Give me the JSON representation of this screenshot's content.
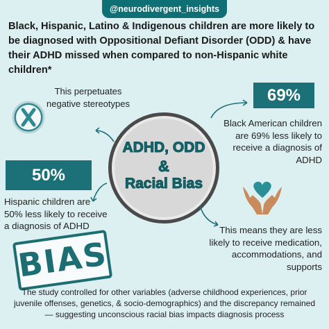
{
  "handle": "@neurodivergent_insights",
  "headline": "Black, Hispanic, Latino & Indigenous children are more likely to be diagnosed with Oppositional Defiant Disorder (ODD) & have their ADHD missed when compared to non-Hispanic white children*",
  "stereotypes": {
    "icon": "x-circle-icon",
    "text": "This perpetuates negative stereotypes"
  },
  "center": {
    "line1": "ADHD, ODD",
    "line2": "&",
    "line3": "Racial Bias"
  },
  "black_stat": {
    "value": "69%",
    "text": "Black American children are 69% less likely to receive a diagnosis of ADHD"
  },
  "hispanic_stat": {
    "value": "50%",
    "text": "Hispanic children are 50% less likely to receive a diagnosis of ADHD"
  },
  "hands_icon": "heart-hands-icon",
  "consequence_text": "This means they are less likely to receive medication, accommodations, and supports",
  "bias_stamp": "BIAS",
  "footer": "The study controlled for other variables (adverse childhood experiences, prior juvenile offenses, genetics, & socio-demographics) and the discrepancy remained — suggesting unconscious racial bias impacts diagnosis process",
  "colors": {
    "background": "#dceff1",
    "teal": "#1c7077",
    "circle_fill": "#d8d8d8",
    "heart": "#2b8f97",
    "hands": "#c98a5e"
  }
}
